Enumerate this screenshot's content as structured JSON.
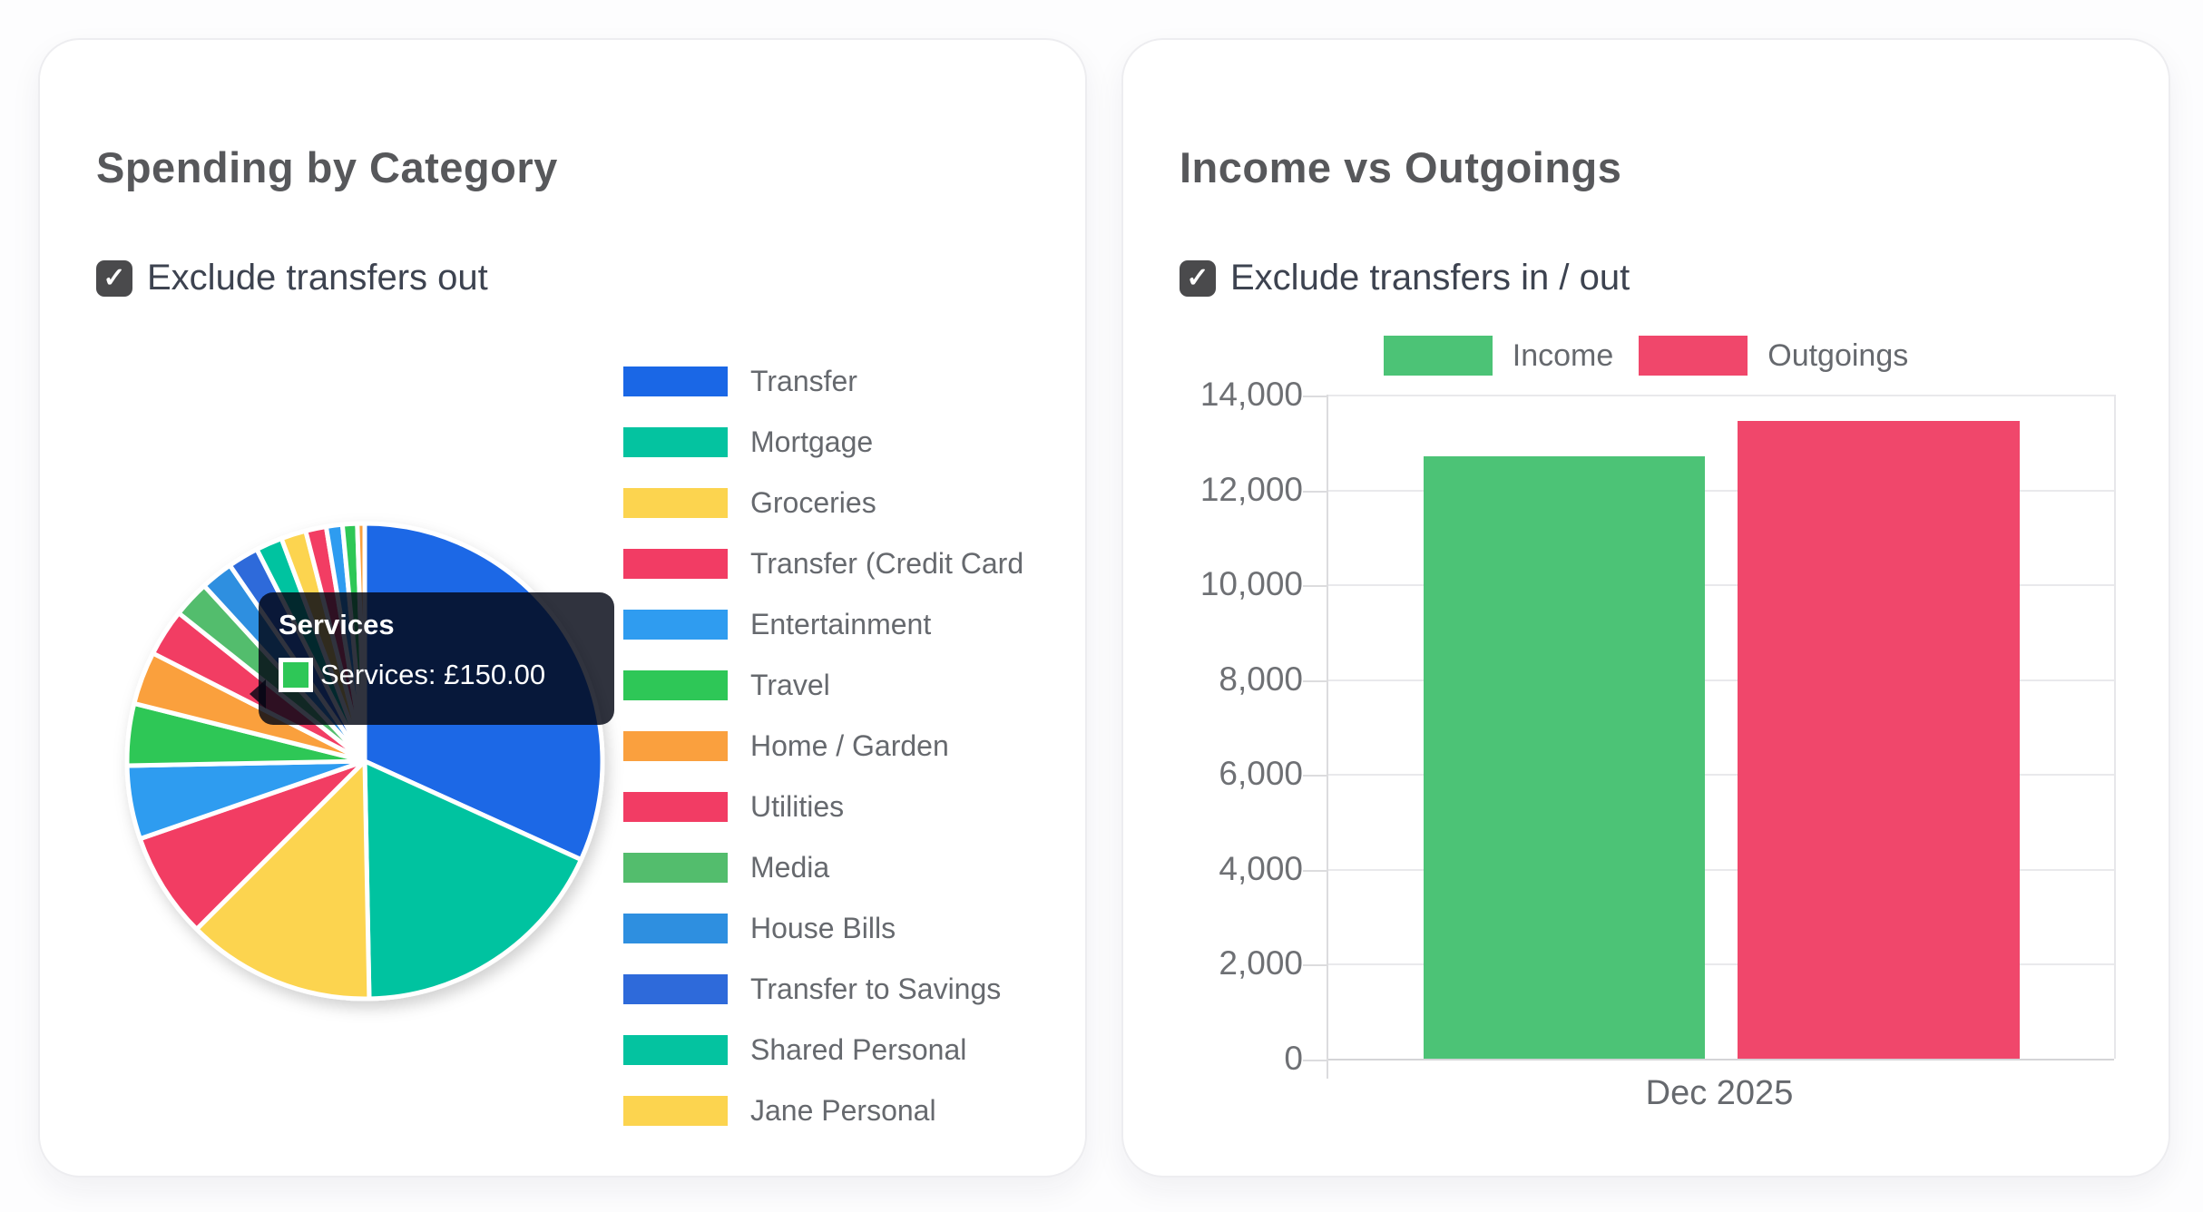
{
  "cards": {
    "spending": {
      "title": "Spending by Category",
      "checkbox_label": "Exclude transfers out",
      "checkbox_checked": true,
      "tooltip": {
        "title": "Services",
        "line": "Services: £150.00",
        "swatch_color": "#2ec757"
      },
      "chart_data": {
        "type": "pie",
        "title": "Spending by Category",
        "currency": "GBP",
        "legend_position": "right",
        "hovered_slice": {
          "label": "Services",
          "value_display": "£150.00",
          "value": 150.0
        },
        "slices": [
          {
            "label": "Transfer",
            "color": "#1a67e6",
            "percent": 31.8,
            "in_legend": true
          },
          {
            "label": "Mortgage",
            "color": "#04c3a0",
            "percent": 17.9,
            "in_legend": true
          },
          {
            "label": "Groceries",
            "color": "#fcd44f",
            "percent": 12.8,
            "in_legend": true
          },
          {
            "label": "Transfer (Credit Card",
            "color": "#f23c64",
            "percent": 7.2,
            "in_legend": true
          },
          {
            "label": "Entertainment",
            "color": "#2f9cf0",
            "percent": 5.0,
            "in_legend": true
          },
          {
            "label": "Travel",
            "color": "#2ec757",
            "percent": 4.2,
            "in_legend": true
          },
          {
            "label": "Home / Garden",
            "color": "#faa03e",
            "percent": 3.6,
            "in_legend": true
          },
          {
            "label": "Utilities",
            "color": "#f23c64",
            "percent": 3.2,
            "in_legend": true
          },
          {
            "label": "Media",
            "color": "#53bd6d",
            "percent": 2.5,
            "in_legend": true
          },
          {
            "label": "House Bills",
            "color": "#2e8fe0",
            "percent": 2.2,
            "in_legend": true
          },
          {
            "label": "Transfer to Savings",
            "color": "#2e6ada",
            "percent": 2.1,
            "in_legend": true
          },
          {
            "label": "Shared Personal",
            "color": "#04c3a0",
            "percent": 1.8,
            "in_legend": true
          },
          {
            "label": "Jane Personal",
            "color": "#fcd44f",
            "percent": 1.7,
            "in_legend": true
          },
          {
            "label": "",
            "color": "#f23c64",
            "percent": 1.4,
            "in_legend": false
          },
          {
            "label": "",
            "color": "#2f9cf0",
            "percent": 1.1,
            "in_legend": false
          },
          {
            "label": "Services",
            "color": "#2ec757",
            "percent": 1.0,
            "in_legend": false
          },
          {
            "label": "",
            "color": "#faa03e",
            "percent": 0.7,
            "in_legend": false
          }
        ]
      }
    },
    "income": {
      "title": "Income vs Outgoings",
      "checkbox_label": "Exclude transfers in / out",
      "checkbox_checked": true,
      "chart_data": {
        "type": "bar",
        "title": "Income vs Outgoings",
        "categories": [
          "Dec 2025"
        ],
        "series": [
          {
            "name": "Income",
            "color": "#4cc376",
            "values": [
              12700
            ]
          },
          {
            "name": "Outgoings",
            "color": "#f0476b",
            "values": [
              13450
            ]
          }
        ],
        "ylim": [
          0,
          14000
        ],
        "ytick_step": 2000,
        "ytick_labels": [
          "0",
          "2,000",
          "4,000",
          "6,000",
          "8,000",
          "10,000",
          "12,000",
          "14,000"
        ],
        "grid": true,
        "legend_position": "top",
        "xlabel": "",
        "ylabel": ""
      }
    }
  }
}
